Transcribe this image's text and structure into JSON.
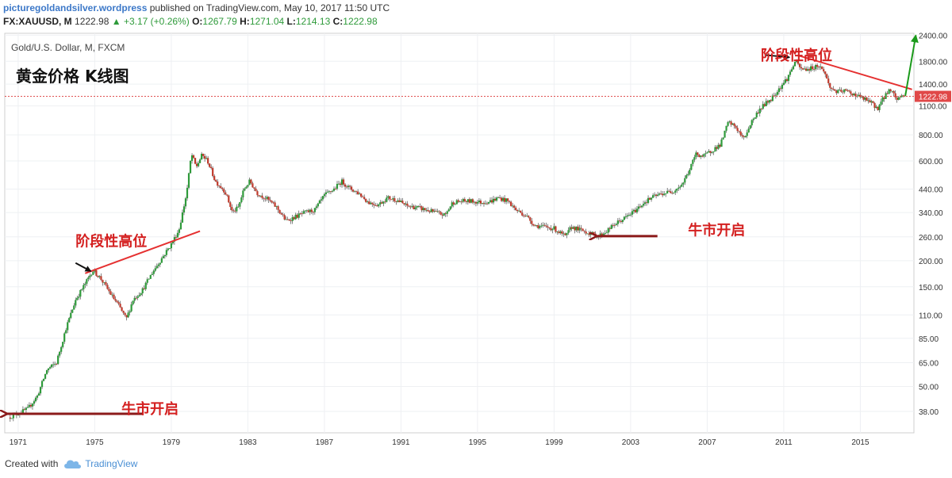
{
  "header": {
    "author": "picturegoldandsilver.wordpress",
    "published": "published on TradingView.com, May 10, 2017 11:50 UTC",
    "symbol": "FX:XAUUSD, M",
    "last": "1222.98",
    "change": "+3.17 (+0.26%)",
    "o_label": "O:",
    "o_value": "1267.79",
    "h_label": "H:",
    "h_value": "1271.04",
    "l_label": "L:",
    "l_value": "1214.13",
    "c_label": "C:",
    "c_value": "1222.98"
  },
  "footer": {
    "created_with": "Created with",
    "brand": "TradingView"
  },
  "colors": {
    "up": "#2e9a3a",
    "down": "#c0392b",
    "annotation": "#d42020",
    "arrow_dark": "#8b1a1a",
    "trend": "#e53030",
    "price_line": "#e05050"
  },
  "chart_data": {
    "type": "candlestick",
    "title": "Gold/U.S. Dollar, M, FXCM",
    "subtitle": "黄金价格 K线图",
    "y_scale": "log",
    "ylim": [
      30,
      2450
    ],
    "xlim": [
      1970.3,
      2017.8
    ],
    "y_ticks": [
      38.0,
      50.0,
      65.0,
      85.0,
      110.0,
      150.0,
      200.0,
      260.0,
      340.0,
      440.0,
      600.0,
      800.0,
      1100.0,
      1400.0,
      1800.0,
      2400.0
    ],
    "y_tick_labels": [
      "38.00",
      "50.00",
      "65.00",
      "85.00",
      "110.00",
      "150.00",
      "200.00",
      "260.00",
      "340.00",
      "440.00",
      "600.00",
      "800.00",
      "1100.00",
      "1400.00",
      "1800.00",
      "2400.00"
    ],
    "x_ticks": [
      "1971",
      "1975",
      "1979",
      "1983",
      "1987",
      "1991",
      "1995",
      "1999",
      "2003",
      "2007",
      "2011",
      "2015"
    ],
    "current_price": 1222.98,
    "current_price_label": "1222.98",
    "price_path": [
      [
        1970.5,
        35.5
      ],
      [
        1971.5,
        39
      ],
      [
        1972.0,
        45
      ],
      [
        1972.5,
        60
      ],
      [
        1973.0,
        65
      ],
      [
        1973.5,
        95
      ],
      [
        1974.0,
        130
      ],
      [
        1974.5,
        155
      ],
      [
        1974.9,
        180
      ],
      [
        1975.3,
        165
      ],
      [
        1975.8,
        140
      ],
      [
        1976.3,
        120
      ],
      [
        1976.65,
        105
      ],
      [
        1977.0,
        130
      ],
      [
        1977.5,
        145
      ],
      [
        1978.0,
        175
      ],
      [
        1978.5,
        205
      ],
      [
        1979.0,
        240
      ],
      [
        1979.4,
        280
      ],
      [
        1979.8,
        420
      ],
      [
        1980.05,
        650
      ],
      [
        1980.3,
        560
      ],
      [
        1980.6,
        640
      ],
      [
        1980.9,
        600
      ],
      [
        1981.3,
        480
      ],
      [
        1981.8,
        430
      ],
      [
        1982.2,
        340
      ],
      [
        1982.5,
        360
      ],
      [
        1982.8,
        440
      ],
      [
        1983.1,
        480
      ],
      [
        1983.5,
        420
      ],
      [
        1984.0,
        395
      ],
      [
        1984.5,
        360
      ],
      [
        1985.0,
        310
      ],
      [
        1985.5,
        325
      ],
      [
        1986.0,
        340
      ],
      [
        1986.5,
        350
      ],
      [
        1987.0,
        410
      ],
      [
        1987.5,
        440
      ],
      [
        1987.9,
        480
      ],
      [
        1988.3,
        445
      ],
      [
        1988.8,
        420
      ],
      [
        1989.3,
        380
      ],
      [
        1989.8,
        370
      ],
      [
        1990.3,
        400
      ],
      [
        1990.8,
        390
      ],
      [
        1991.3,
        365
      ],
      [
        1991.8,
        360
      ],
      [
        1992.3,
        350
      ],
      [
        1992.8,
        340
      ],
      [
        1993.3,
        330
      ],
      [
        1993.7,
        380
      ],
      [
        1994.2,
        385
      ],
      [
        1994.7,
        385
      ],
      [
        1995.2,
        380
      ],
      [
        1995.7,
        385
      ],
      [
        1996.1,
        400
      ],
      [
        1996.6,
        385
      ],
      [
        1997.0,
        350
      ],
      [
        1997.5,
        330
      ],
      [
        1998.0,
        295
      ],
      [
        1998.5,
        290
      ],
      [
        1999.0,
        285
      ],
      [
        1999.6,
        260
      ],
      [
        1999.9,
        290
      ],
      [
        2000.4,
        280
      ],
      [
        2000.9,
        270
      ],
      [
        2001.3,
        262
      ],
      [
        2001.7,
        275
      ],
      [
        2002.2,
        300
      ],
      [
        2002.7,
        320
      ],
      [
        2003.2,
        345
      ],
      [
        2003.7,
        380
      ],
      [
        2004.2,
        405
      ],
      [
        2004.7,
        420
      ],
      [
        2005.2,
        430
      ],
      [
        2005.7,
        465
      ],
      [
        2006.1,
        550
      ],
      [
        2006.4,
        650
      ],
      [
        2006.8,
        630
      ],
      [
        2007.2,
        670
      ],
      [
        2007.7,
        720
      ],
      [
        2008.1,
        920
      ],
      [
        2008.5,
        870
      ],
      [
        2008.9,
        760
      ],
      [
        2009.3,
        920
      ],
      [
        2009.8,
        1080
      ],
      [
        2010.3,
        1180
      ],
      [
        2010.8,
        1350
      ],
      [
        2011.2,
        1500
      ],
      [
        2011.6,
        1800
      ],
      [
        2011.9,
        1650
      ],
      [
        2012.3,
        1650
      ],
      [
        2012.8,
        1720
      ],
      [
        2013.1,
        1620
      ],
      [
        2013.4,
        1350
      ],
      [
        2013.8,
        1280
      ],
      [
        2014.2,
        1300
      ],
      [
        2014.7,
        1250
      ],
      [
        2015.1,
        1200
      ],
      [
        2015.5,
        1150
      ],
      [
        2015.9,
        1070
      ],
      [
        2016.3,
        1240
      ],
      [
        2016.6,
        1330
      ],
      [
        2016.9,
        1180
      ],
      [
        2017.2,
        1250
      ],
      [
        2017.35,
        1223
      ]
    ],
    "annotations": [
      {
        "text": "阶段性高位",
        "at": [
          1974.0,
          235
        ]
      },
      {
        "text": "阶段性高位",
        "at": [
          2009.8,
          1820
        ]
      },
      {
        "text": "牛市开启",
        "at": [
          2006.0,
          265
        ]
      },
      {
        "text": "牛市开启",
        "at": [
          1976.4,
          37
        ]
      }
    ],
    "trend_lines": [
      {
        "from": [
          1974.5,
          174
        ],
        "to": [
          1980.5,
          277
        ]
      },
      {
        "from": [
          2011.75,
          1920
        ],
        "to": [
          2017.7,
          1320
        ]
      }
    ],
    "arrows": [
      {
        "style": "dark-red",
        "from": [
          1977.5,
          37
        ],
        "to": [
          1970.4,
          37
        ]
      },
      {
        "style": "dark-red",
        "from": [
          2004.4,
          262
        ],
        "to": [
          2001.2,
          262
        ]
      },
      {
        "style": "black",
        "from": [
          1974.0,
          195
        ],
        "to": [
          1974.8,
          178
        ]
      },
      {
        "style": "black",
        "from": [
          2010.0,
          1930
        ],
        "to": [
          2011.3,
          1880
        ]
      },
      {
        "style": "green",
        "from": [
          2017.35,
          1230
        ],
        "to": [
          2017.9,
          2400
        ]
      }
    ]
  }
}
